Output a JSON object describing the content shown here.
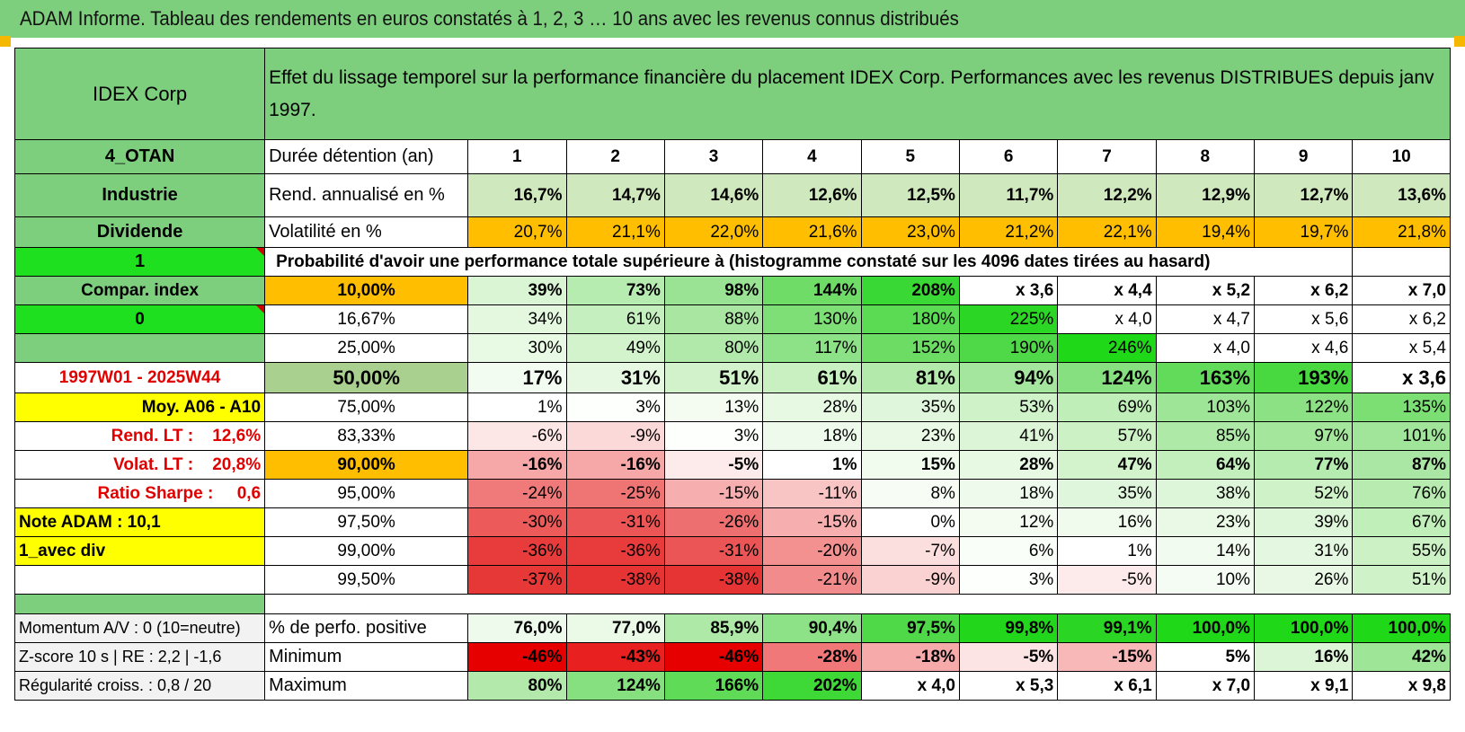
{
  "report_title": "ADAM Informe. Tableau des rendements en euros constatés à 1, 2, 3 … 10 ans avec les revenus connus distribués",
  "header": {
    "company": "IDEX Corp",
    "description": "Effet du lissage temporel sur la performance financière du placement IDEX Corp. Performances avec les revenus DISTRIBUES depuis janv 1997."
  },
  "colors": {
    "header_green": "#7dcf7d",
    "orange": "#ffbf00",
    "yellow": "#ffff00",
    "bright_green": "#1fe01f",
    "red_text": "#e00000"
  },
  "rows": [
    {
      "label": "4_OTAN",
      "label_style": "lab",
      "metric": "Durée détention (an)",
      "cells": [
        {
          "v": "1",
          "bg": "#ffffff"
        },
        {
          "v": "2",
          "bg": "#ffffff"
        },
        {
          "v": "3",
          "bg": "#ffffff"
        },
        {
          "v": "4",
          "bg": "#ffffff"
        },
        {
          "v": "5",
          "bg": "#ffffff"
        },
        {
          "v": "6",
          "bg": "#ffffff"
        },
        {
          "v": "7",
          "bg": "#ffffff"
        },
        {
          "v": "8",
          "bg": "#ffffff"
        },
        {
          "v": "9",
          "bg": "#ffffff"
        },
        {
          "v": "10",
          "bg": "#ffffff"
        }
      ],
      "cell_class": "ctr bold"
    },
    {
      "label": "Industrie",
      "label_style": "lab",
      "metric": "Rend. annualisé en %",
      "cells": [
        {
          "v": "16,7%",
          "bg": "#cfe8bd"
        },
        {
          "v": "14,7%",
          "bg": "#cfe8bd"
        },
        {
          "v": "14,6%",
          "bg": "#cfe8bd"
        },
        {
          "v": "12,6%",
          "bg": "#cfe8bd"
        },
        {
          "v": "12,5%",
          "bg": "#cfe8bd"
        },
        {
          "v": "11,7%",
          "bg": "#cfe8bd"
        },
        {
          "v": "12,2%",
          "bg": "#cfe8bd"
        },
        {
          "v": "12,9%",
          "bg": "#cfe8bd"
        },
        {
          "v": "12,7%",
          "bg": "#cfe8bd"
        },
        {
          "v": "13,6%",
          "bg": "#cfe8bd"
        }
      ],
      "cell_class": "num bold"
    },
    {
      "label": "Dividende",
      "label_style": "lab",
      "metric": "Volatilité en %",
      "cells": [
        {
          "v": "20,7%",
          "bg": "#ffbf00"
        },
        {
          "v": "21,1%",
          "bg": "#ffbf00"
        },
        {
          "v": "22,0%",
          "bg": "#ffbf00"
        },
        {
          "v": "21,6%",
          "bg": "#ffbf00"
        },
        {
          "v": "23,0%",
          "bg": "#ffbf00"
        },
        {
          "v": "21,2%",
          "bg": "#ffbf00"
        },
        {
          "v": "22,1%",
          "bg": "#ffbf00"
        },
        {
          "v": "19,4%",
          "bg": "#ffbf00"
        },
        {
          "v": "19,7%",
          "bg": "#ffbf00"
        },
        {
          "v": "21,8%",
          "bg": "#ffbf00"
        }
      ],
      "cell_class": "num"
    }
  ],
  "prob_row": {
    "label": "1",
    "text": "Probabilité d'avoir une performance totale supérieure à (histogramme constaté sur les 4096 dates tirées au hasard)"
  },
  "prob_rows": [
    {
      "label": "Compar. index",
      "label_bg": "#7dcf7d",
      "label_color": "#000",
      "label_align": "center",
      "label_bold": true,
      "triangle": false,
      "threshold": "10,00%",
      "thr_bg": "#ffbf00",
      "thr_big": false,
      "bold": true,
      "cells": [
        {
          "v": "39%",
          "bg": "#d9f5d3"
        },
        {
          "v": "73%",
          "bg": "#b7ecb0"
        },
        {
          "v": "98%",
          "bg": "#9be394"
        },
        {
          "v": "144%",
          "bg": "#6fdc68"
        },
        {
          "v": "208%",
          "bg": "#3ad834"
        },
        {
          "v": "x 3,6",
          "bg": "#ffffff"
        },
        {
          "v": "x 4,4",
          "bg": "#ffffff"
        },
        {
          "v": "x 5,2",
          "bg": "#ffffff"
        },
        {
          "v": "x 6,2",
          "bg": "#ffffff"
        },
        {
          "v": "x 7,0",
          "bg": "#ffffff"
        }
      ]
    },
    {
      "label": "0",
      "label_bg": "#1fe01f",
      "label_color": "#000",
      "label_align": "center",
      "label_bold": true,
      "triangle": true,
      "threshold": "16,67%",
      "thr_bg": "#ffffff",
      "thr_big": false,
      "bold": false,
      "cells": [
        {
          "v": "34%",
          "bg": "#e3f8df"
        },
        {
          "v": "61%",
          "bg": "#c5efbe"
        },
        {
          "v": "88%",
          "bg": "#a8e6a1"
        },
        {
          "v": "130%",
          "bg": "#7ddf76"
        },
        {
          "v": "180%",
          "bg": "#5bdb54"
        },
        {
          "v": "225%",
          "bg": "#2bd624"
        },
        {
          "v": "x 4,0",
          "bg": "#ffffff"
        },
        {
          "v": "x 4,7",
          "bg": "#ffffff"
        },
        {
          "v": "x 5,6",
          "bg": "#ffffff"
        },
        {
          "v": "x 6,2",
          "bg": "#ffffff"
        }
      ]
    },
    {
      "label": "",
      "label_bg": "#7dcf7d",
      "label_color": "#000",
      "label_align": "center",
      "label_bold": true,
      "triangle": false,
      "threshold": "25,00%",
      "thr_bg": "#ffffff",
      "thr_big": false,
      "bold": false,
      "cells": [
        {
          "v": "30%",
          "bg": "#e8f9e4"
        },
        {
          "v": "49%",
          "bg": "#d3f3cd"
        },
        {
          "v": "80%",
          "bg": "#b0e9a9"
        },
        {
          "v": "117%",
          "bg": "#8de186"
        },
        {
          "v": "152%",
          "bg": "#6cdc65"
        },
        {
          "v": "190%",
          "bg": "#4fd948"
        },
        {
          "v": "246%",
          "bg": "#1fd818"
        },
        {
          "v": "x 4,0",
          "bg": "#ffffff"
        },
        {
          "v": "x 4,6",
          "bg": "#ffffff"
        },
        {
          "v": "x 5,4",
          "bg": "#ffffff"
        }
      ]
    },
    {
      "label": "1997W01 - 2025W44",
      "label_bg": "#ffffff",
      "label_color": "#e00000",
      "label_align": "center",
      "label_bold": true,
      "triangle": false,
      "threshold": "50,00%",
      "thr_bg": "#a9d08e",
      "thr_big": true,
      "bold": true,
      "big": true,
      "cells": [
        {
          "v": "17%",
          "bg": "#f2fcf0"
        },
        {
          "v": "31%",
          "bg": "#e6f8e2"
        },
        {
          "v": "51%",
          "bg": "#d1f2ca"
        },
        {
          "v": "61%",
          "bg": "#c8f0c1"
        },
        {
          "v": "81%",
          "bg": "#b3eaab"
        },
        {
          "v": "94%",
          "bg": "#a5e69e"
        },
        {
          "v": "124%",
          "bg": "#86e07f"
        },
        {
          "v": "163%",
          "bg": "#62db5b"
        },
        {
          "v": "193%",
          "bg": "#48d941"
        },
        {
          "v": "x 3,6",
          "bg": "#ffffff"
        }
      ]
    },
    {
      "label": "Moy. A06 - A10",
      "label_bg": "#ffff00",
      "label_color": "#000",
      "label_align": "right",
      "label_bold": true,
      "triangle": false,
      "threshold": "75,00%",
      "thr_bg": "#ffffff",
      "thr_big": false,
      "bold": false,
      "cells": [
        {
          "v": "1%",
          "bg": "#ffffff"
        },
        {
          "v": "3%",
          "bg": "#fdfffc"
        },
        {
          "v": "13%",
          "bg": "#f4fcf2"
        },
        {
          "v": "28%",
          "bg": "#e7f8e3"
        },
        {
          "v": "35%",
          "bg": "#e0f6dc"
        },
        {
          "v": "53%",
          "bg": "#cff2c8"
        },
        {
          "v": "69%",
          "bg": "#bfeeb8"
        },
        {
          "v": "103%",
          "bg": "#9fe598"
        },
        {
          "v": "122%",
          "bg": "#8be184"
        },
        {
          "v": "135%",
          "bg": "#7bdf74"
        }
      ]
    },
    {
      "label": "Rend. LT :    12,6%",
      "label_bg": "#ffffff",
      "label_color": "#e00000",
      "label_align": "right",
      "label_bold": true,
      "triangle": false,
      "threshold": "83,33%",
      "thr_bg": "#ffffff",
      "thr_big": false,
      "bold": false,
      "cells": [
        {
          "v": "-6%",
          "bg": "#fde6e6"
        },
        {
          "v": "-9%",
          "bg": "#fcd9d9"
        },
        {
          "v": "3%",
          "bg": "#fdfffc"
        },
        {
          "v": "18%",
          "bg": "#eefaeb"
        },
        {
          "v": "23%",
          "bg": "#eaf9e6"
        },
        {
          "v": "41%",
          "bg": "#dcf5d7"
        },
        {
          "v": "57%",
          "bg": "#ccf1c5"
        },
        {
          "v": "85%",
          "bg": "#afe9a8"
        },
        {
          "v": "97%",
          "bg": "#a3e69c"
        },
        {
          "v": "101%",
          "bg": "#a0e599"
        }
      ]
    },
    {
      "label": "Volat. LT :    20,8%",
      "label_bg": "#ffffff",
      "label_color": "#e00000",
      "label_align": "right",
      "label_bold": true,
      "triangle": false,
      "threshold": "90,00%",
      "thr_bg": "#ffbf00",
      "thr_big": false,
      "bold": true,
      "cells": [
        {
          "v": "-16%",
          "bg": "#f6a8a8"
        },
        {
          "v": "-16%",
          "bg": "#f6a8a8"
        },
        {
          "v": "-5%",
          "bg": "#fdeaea"
        },
        {
          "v": "1%",
          "bg": "#ffffff"
        },
        {
          "v": "15%",
          "bg": "#f1fbee"
        },
        {
          "v": "28%",
          "bg": "#e7f8e3"
        },
        {
          "v": "47%",
          "bg": "#d3f3cd"
        },
        {
          "v": "64%",
          "bg": "#c3efbc"
        },
        {
          "v": "77%",
          "bg": "#b6ebaf"
        },
        {
          "v": "87%",
          "bg": "#abe7a4"
        }
      ]
    },
    {
      "label": "Ratio Sharpe :     0,6",
      "label_bg": "#ffffff",
      "label_color": "#e00000",
      "label_align": "right",
      "label_bold": true,
      "triangle": false,
      "threshold": "95,00%",
      "thr_bg": "#ffffff",
      "thr_big": false,
      "bold": false,
      "cells": [
        {
          "v": "-24%",
          "bg": "#f07a7a"
        },
        {
          "v": "-25%",
          "bg": "#ef7575"
        },
        {
          "v": "-15%",
          "bg": "#f7aeae"
        },
        {
          "v": "-11%",
          "bg": "#f9c4c4"
        },
        {
          "v": "8%",
          "bg": "#f7fdf5"
        },
        {
          "v": "18%",
          "bg": "#eefaeb"
        },
        {
          "v": "35%",
          "bg": "#e0f6dc"
        },
        {
          "v": "38%",
          "bg": "#ddf5d8"
        },
        {
          "v": "52%",
          "bg": "#d0f2c9"
        },
        {
          "v": "76%",
          "bg": "#b7ebb0"
        }
      ]
    },
    {
      "label": "Note ADAM : 10,1",
      "label_bg": "#ffff00",
      "label_color": "#000",
      "label_align": "left",
      "label_bold": true,
      "triangle": false,
      "threshold": "97,50%",
      "thr_bg": "#ffffff",
      "thr_big": false,
      "bold": false,
      "cells": [
        {
          "v": "-30%",
          "bg": "#ec5a5a"
        },
        {
          "v": "-31%",
          "bg": "#eb5555"
        },
        {
          "v": "-26%",
          "bg": "#ee6f6f"
        },
        {
          "v": "-15%",
          "bg": "#f7aeae"
        },
        {
          "v": "0%",
          "bg": "#ffffff"
        },
        {
          "v": "12%",
          "bg": "#f4fcf2"
        },
        {
          "v": "16%",
          "bg": "#f0fbed"
        },
        {
          "v": "23%",
          "bg": "#eaf9e6"
        },
        {
          "v": "39%",
          "bg": "#ddf5d8"
        },
        {
          "v": "67%",
          "bg": "#c0efb9"
        }
      ]
    },
    {
      "label": "1_avec div",
      "label_bg": "#ffff00",
      "label_color": "#000",
      "label_align": "left",
      "label_bold": true,
      "triangle": false,
      "threshold": "99,00%",
      "thr_bg": "#ffffff",
      "thr_big": false,
      "bold": false,
      "cells": [
        {
          "v": "-36%",
          "bg": "#e83c3c"
        },
        {
          "v": "-36%",
          "bg": "#e83c3c"
        },
        {
          "v": "-31%",
          "bg": "#eb5555"
        },
        {
          "v": "-20%",
          "bg": "#f39090"
        },
        {
          "v": "-7%",
          "bg": "#fbdede"
        },
        {
          "v": "6%",
          "bg": "#f9fef8"
        },
        {
          "v": "1%",
          "bg": "#ffffff"
        },
        {
          "v": "14%",
          "bg": "#f2fbef"
        },
        {
          "v": "31%",
          "bg": "#e4f7e0"
        },
        {
          "v": "55%",
          "bg": "#ccf1c5"
        }
      ]
    },
    {
      "label": "",
      "label_bg": "#ffffff",
      "label_color": "#000",
      "label_align": "left",
      "label_bold": true,
      "triangle": false,
      "threshold": "99,50%",
      "thr_bg": "#ffffff",
      "thr_big": false,
      "bold": false,
      "cells": [
        {
          "v": "-37%",
          "bg": "#e73838"
        },
        {
          "v": "-38%",
          "bg": "#e63333"
        },
        {
          "v": "-38%",
          "bg": "#e63333"
        },
        {
          "v": "-21%",
          "bg": "#f28b8b"
        },
        {
          "v": "-9%",
          "bg": "#fad2d2"
        },
        {
          "v": "3%",
          "bg": "#fdfffc"
        },
        {
          "v": "-5%",
          "bg": "#fdeaea"
        },
        {
          "v": "10%",
          "bg": "#f5fcf3"
        },
        {
          "v": "26%",
          "bg": "#e8f8e4"
        },
        {
          "v": "51%",
          "bg": "#d0f2c9"
        }
      ]
    }
  ],
  "stats_rows": [
    {
      "label": "Momentum A/V : 0 (10=neutre)",
      "metric": "% de perfo. positive",
      "cells": [
        {
          "v": "76,0%",
          "bg": "#eefaeb"
        },
        {
          "v": "77,0%",
          "bg": "#ebf9e7"
        },
        {
          "v": "85,9%",
          "bg": "#aee9a7"
        },
        {
          "v": "90,4%",
          "bg": "#8de186"
        },
        {
          "v": "97,5%",
          "bg": "#4fd948"
        },
        {
          "v": "99,8%",
          "bg": "#22d61b"
        },
        {
          "v": "99,1%",
          "bg": "#2ad623"
        },
        {
          "v": "100,0%",
          "bg": "#1fd818"
        },
        {
          "v": "100,0%",
          "bg": "#1fd818"
        },
        {
          "v": "100,0%",
          "bg": "#1fd818"
        }
      ]
    },
    {
      "label": "Z-score 10 s | RE : 2,2 | -1,6",
      "metric": "Minimum",
      "cells": [
        {
          "v": "-46%",
          "bg": "#e60000"
        },
        {
          "v": "-43%",
          "bg": "#e82020"
        },
        {
          "v": "-46%",
          "bg": "#e60000"
        },
        {
          "v": "-28%",
          "bg": "#f07878"
        },
        {
          "v": "-18%",
          "bg": "#f6aaaa"
        },
        {
          "v": "-5%",
          "bg": "#fde4e4"
        },
        {
          "v": "-15%",
          "bg": "#f8b8b8"
        },
        {
          "v": "5%",
          "bg": "#ffffff"
        },
        {
          "v": "16%",
          "bg": "#dcf5d7"
        },
        {
          "v": "42%",
          "bg": "#9fe598"
        }
      ]
    },
    {
      "label": "Régularité croiss. : 0,8 / 20",
      "metric": "Maximum",
      "cells": [
        {
          "v": "80%",
          "bg": "#b3eaab"
        },
        {
          "v": "124%",
          "bg": "#86e07f"
        },
        {
          "v": "166%",
          "bg": "#5fdb58"
        },
        {
          "v": "202%",
          "bg": "#3ed837"
        },
        {
          "v": "x 4,0",
          "bg": "#ffffff"
        },
        {
          "v": "x 5,3",
          "bg": "#ffffff"
        },
        {
          "v": "x 6,1",
          "bg": "#ffffff"
        },
        {
          "v": "x 7,0",
          "bg": "#ffffff"
        },
        {
          "v": "x 9,1",
          "bg": "#ffffff"
        },
        {
          "v": "x 9,8",
          "bg": "#ffffff"
        }
      ]
    }
  ]
}
